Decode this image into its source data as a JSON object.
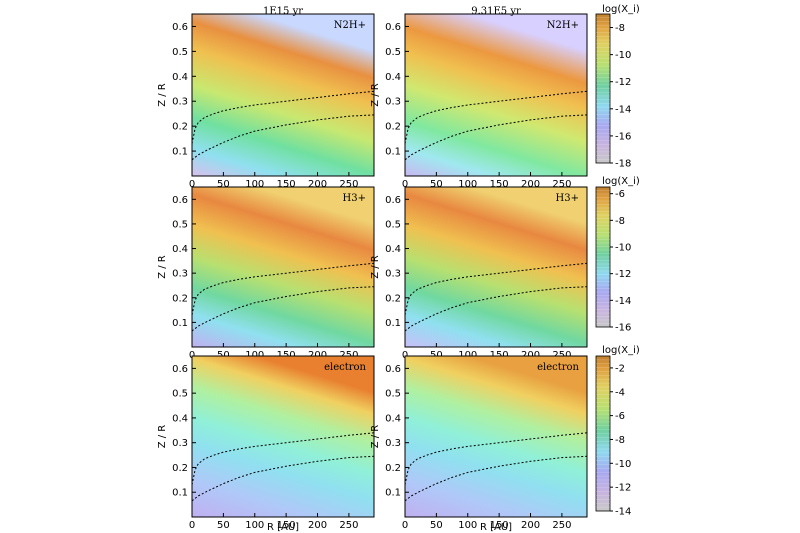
{
  "chart_data": {
    "type": "heatmap",
    "column_titles": [
      "1E15 yr",
      "9.31E5 yr"
    ],
    "xlabel": "R [AU]",
    "ylabel": "Z / R",
    "xlim": [
      0,
      290
    ],
    "ylim": [
      0,
      0.65
    ],
    "x_ticks": [
      "0",
      "50",
      "100",
      "150",
      "200",
      "250"
    ],
    "y_ticks": [
      "0.1",
      "0.2",
      "0.3",
      "0.4",
      "0.5",
      "0.6"
    ],
    "dotted_contours": [
      {
        "name": "upper",
        "x": [
          0,
          5,
          10,
          20,
          35,
          50,
          75,
          100,
          150,
          200,
          250,
          290
        ],
        "y": [
          0.13,
          0.19,
          0.215,
          0.235,
          0.25,
          0.262,
          0.275,
          0.285,
          0.3,
          0.315,
          0.33,
          0.34
        ]
      },
      {
        "name": "lower",
        "x": [
          0,
          10,
          25,
          50,
          75,
          100,
          150,
          200,
          250,
          290
        ],
        "y": [
          0.065,
          0.085,
          0.105,
          0.135,
          0.16,
          0.18,
          0.205,
          0.225,
          0.24,
          0.245
        ]
      }
    ],
    "rows": [
      {
        "species": "N2H+",
        "colorbar": {
          "title": "log(X_i)",
          "ticks": [
            "-8",
            "-10",
            "-12",
            "-14",
            "-16",
            "-18"
          ],
          "range": [
            -18,
            -7
          ]
        }
      },
      {
        "species": "H3+",
        "colorbar": {
          "title": "log(X_i)",
          "ticks": [
            "-6",
            "-8",
            "-10",
            "-12",
            "-14",
            "-16"
          ],
          "range": [
            -16,
            -5.5
          ]
        }
      },
      {
        "species": "electron",
        "colorbar": {
          "title": "log(X_i)",
          "ticks": [
            "-2",
            "-4",
            "-6",
            "-8",
            "-10",
            "-12",
            "-14"
          ],
          "range": [
            -14,
            -1
          ]
        }
      }
    ],
    "grid": false,
    "legend": "colorbar-right"
  }
}
